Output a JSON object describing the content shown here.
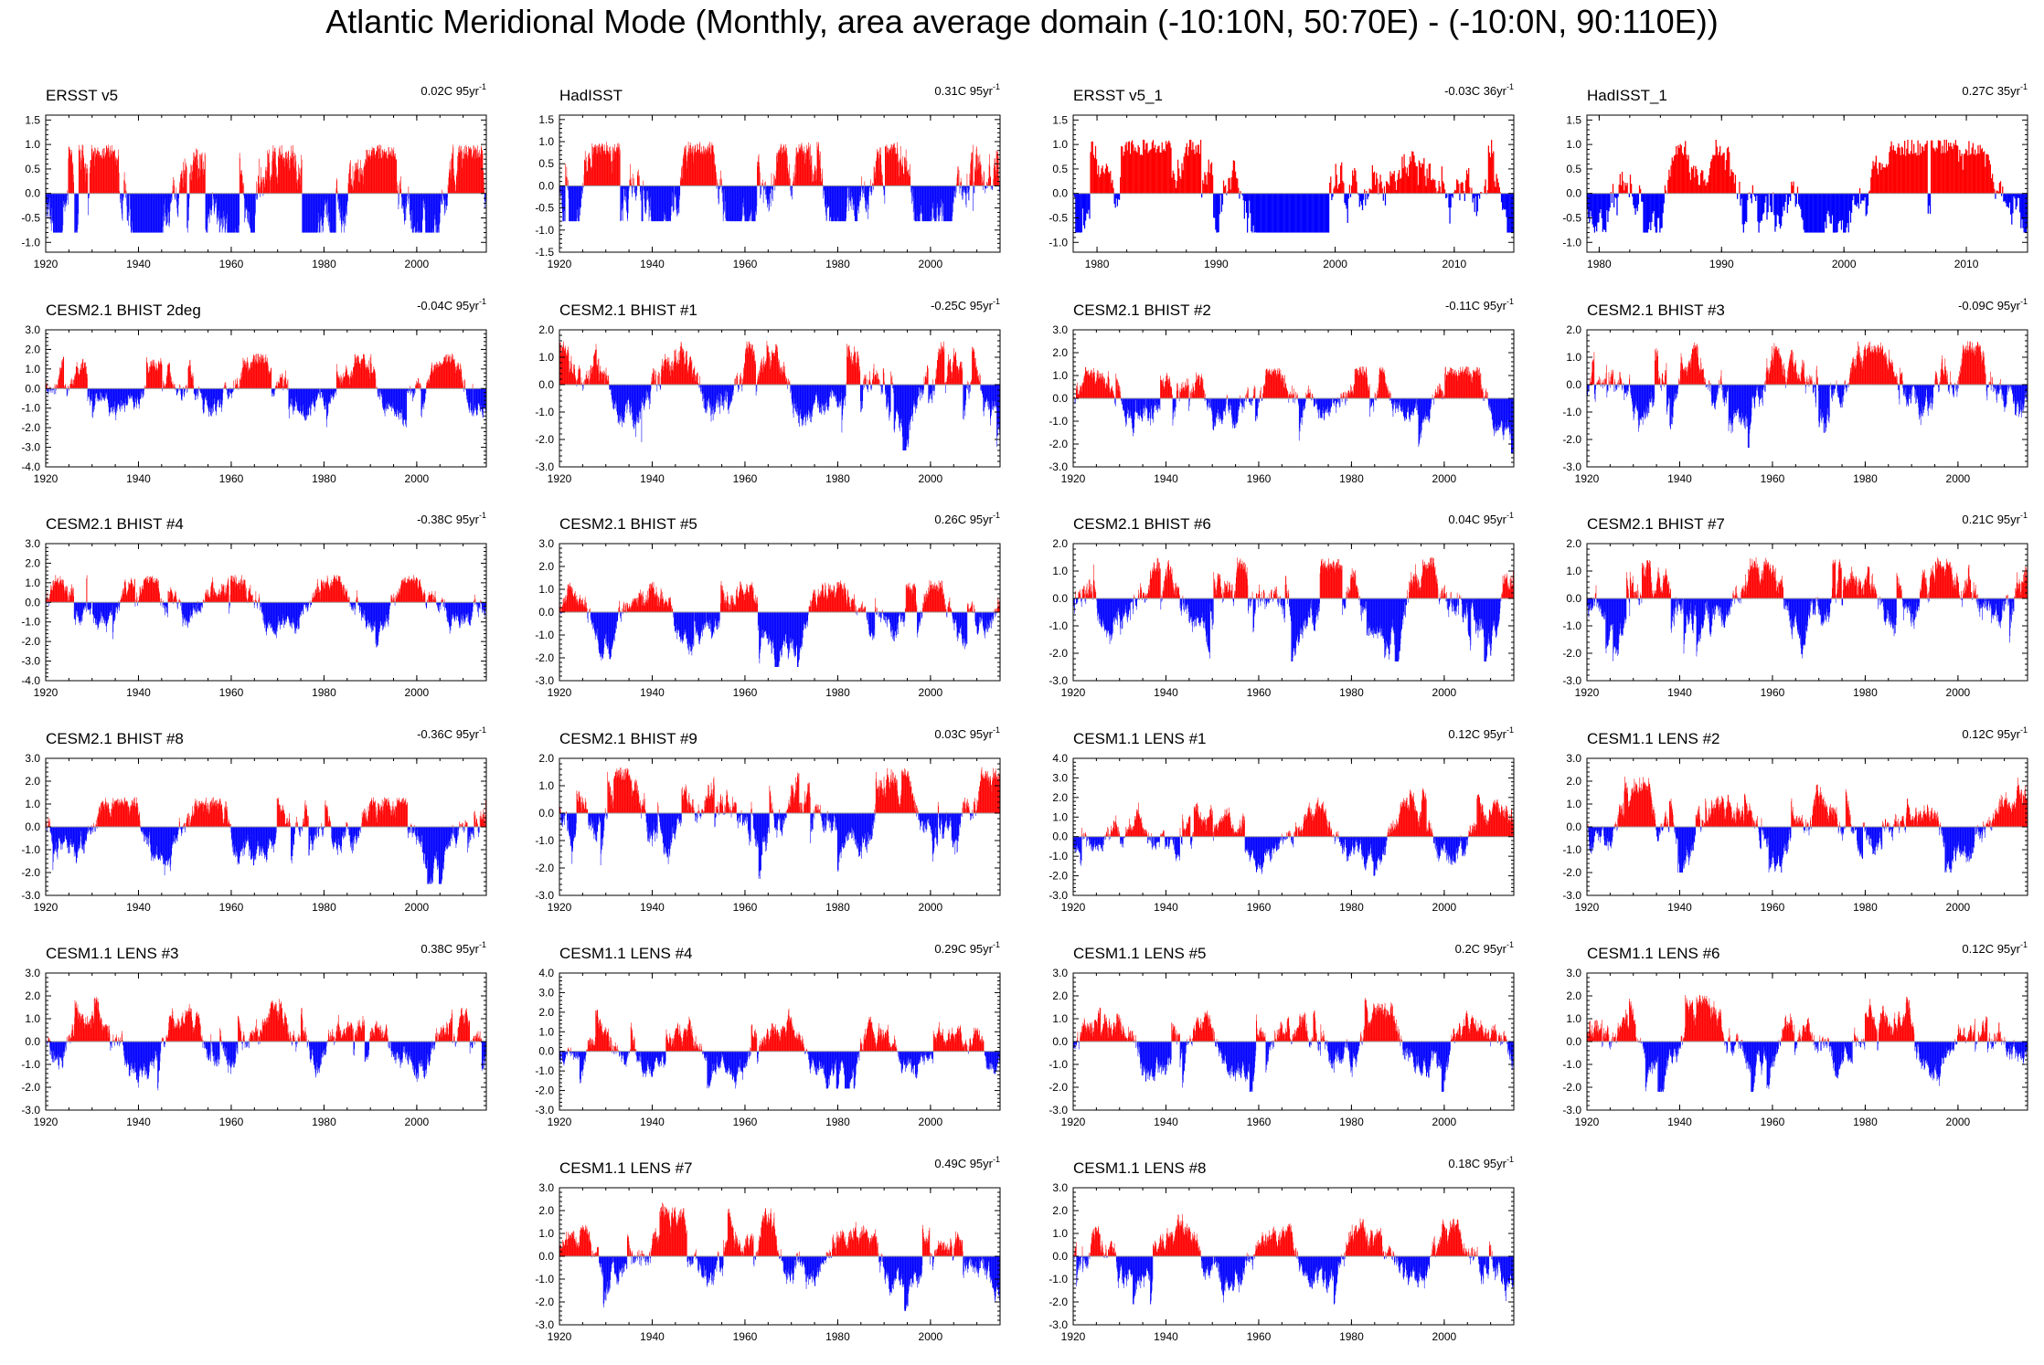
{
  "figure": {
    "title": "Atlantic Meridional Mode (Monthly, area average domain (-10:10N, 50:70E) - (-10:0N, 90:110E))"
  },
  "colors": {
    "positive": "#ff0000",
    "negative": "#0000ff",
    "line": "#999999",
    "axis": "#000000"
  },
  "chart_data": [
    {
      "type": "bar",
      "title": "ERSST v5",
      "trend": "0.02C 95yr",
      "trend_exp": "-1",
      "xlim": [
        1920,
        2015
      ],
      "ylim": [
        -1.2,
        1.6
      ],
      "yticks": [
        "1.5",
        "1.0",
        "0.5",
        "0.0",
        "-0.5",
        "-1.0"
      ],
      "ytick_values": [
        1.5,
        1.0,
        0.5,
        0.0,
        -0.5,
        -1.0
      ],
      "xticks": [
        "1920",
        "1940",
        "1960",
        "1980",
        "2000"
      ],
      "xtick_values": [
        1920,
        1940,
        1960,
        1980,
        2000
      ],
      "amp": [
        1.0,
        -0.8
      ]
    },
    {
      "type": "bar",
      "title": "HadISST",
      "trend": "0.31C 95yr",
      "trend_exp": "-1",
      "xlim": [
        1920,
        2015
      ],
      "ylim": [
        -1.5,
        1.6
      ],
      "yticks": [
        "1.5",
        "1.0",
        "0.5",
        "0.0",
        "-0.5",
        "-1.0",
        "-1.5"
      ],
      "ytick_values": [
        1.5,
        1.0,
        0.5,
        0.0,
        -0.5,
        -1.0,
        -1.5
      ],
      "xticks": [
        "1920",
        "1940",
        "1960",
        "1980",
        "2000"
      ],
      "xtick_values": [
        1920,
        1940,
        1960,
        1980,
        2000
      ],
      "amp": [
        1.0,
        -0.8
      ]
    },
    {
      "type": "bar",
      "title": "ERSST v5_1",
      "trend": "-0.03C 36yr",
      "trend_exp": "-1",
      "xlim": [
        1978,
        2015
      ],
      "ylim": [
        -1.2,
        1.6
      ],
      "yticks": [
        "1.5",
        "1.0",
        "0.5",
        "0.0",
        "-0.5",
        "-1.0"
      ],
      "ytick_values": [
        1.5,
        1.0,
        0.5,
        0.0,
        -0.5,
        -1.0
      ],
      "xticks": [
        "1980",
        "1990",
        "2000",
        "2010"
      ],
      "xtick_values": [
        1980,
        1990,
        2000,
        2010
      ],
      "amp": [
        1.1,
        -0.8
      ]
    },
    {
      "type": "bar",
      "title": "HadISST_1",
      "trend": "0.27C 35yr",
      "trend_exp": "-1",
      "xlim": [
        1979,
        2015
      ],
      "ylim": [
        -1.2,
        1.6
      ],
      "yticks": [
        "1.5",
        "1.0",
        "0.5",
        "0.0",
        "-0.5",
        "-1.0"
      ],
      "ytick_values": [
        1.5,
        1.0,
        0.5,
        0.0,
        -0.5,
        -1.0
      ],
      "xticks": [
        "1980",
        "1990",
        "2000",
        "2010"
      ],
      "xtick_values": [
        1980,
        1990,
        2000,
        2010
      ],
      "amp": [
        1.1,
        -0.8
      ]
    },
    {
      "type": "bar",
      "title": "CESM2.1 BHIST 2deg",
      "trend": "-0.04C 95yr",
      "trend_exp": "-1",
      "xlim": [
        1920,
        2015
      ],
      "ylim": [
        -4.0,
        3.0
      ],
      "yticks": [
        "3.0",
        "2.0",
        "1.0",
        "0.0",
        "-1.0",
        "-2.0",
        "-3.0",
        "-4.0"
      ],
      "ytick_values": [
        3,
        2,
        1,
        0,
        -1,
        -2,
        -3,
        -4
      ],
      "xticks": [
        "1920",
        "1940",
        "1960",
        "1980",
        "2000"
      ],
      "xtick_values": [
        1920,
        1940,
        1960,
        1980,
        2000
      ],
      "amp": [
        1.8,
        -2.6
      ]
    },
    {
      "type": "bar",
      "title": "CESM2.1 BHIST #1",
      "trend": "-0.25C 95yr",
      "trend_exp": "-1",
      "xlim": [
        1920,
        2015
      ],
      "ylim": [
        -3.0,
        2.0
      ],
      "yticks": [
        "2.0",
        "1.0",
        "0.0",
        "-1.0",
        "-2.0",
        "-3.0"
      ],
      "ytick_values": [
        2,
        1,
        0,
        -1,
        -2,
        -3
      ],
      "xticks": [
        "1920",
        "1940",
        "1960",
        "1980",
        "2000"
      ],
      "xtick_values": [
        1920,
        1940,
        1960,
        1980,
        2000
      ],
      "amp": [
        1.6,
        -2.4
      ]
    },
    {
      "type": "bar",
      "title": "CESM2.1 BHIST #2",
      "trend": "-0.11C 95yr",
      "trend_exp": "-1",
      "xlim": [
        1920,
        2015
      ],
      "ylim": [
        -3.0,
        3.0
      ],
      "yticks": [
        "3.0",
        "2.0",
        "1.0",
        "0.0",
        "-1.0",
        "-2.0",
        "-3.0"
      ],
      "ytick_values": [
        3,
        2,
        1,
        0,
        -1,
        -2,
        -3
      ],
      "xticks": [
        "1920",
        "1940",
        "1960",
        "1980",
        "2000"
      ],
      "xtick_values": [
        1920,
        1940,
        1960,
        1980,
        2000
      ],
      "amp": [
        1.4,
        -2.4
      ]
    },
    {
      "type": "bar",
      "title": "CESM2.1 BHIST #3",
      "trend": "-0.09C 95yr",
      "trend_exp": "-1",
      "xlim": [
        1920,
        2015
      ],
      "ylim": [
        -3.0,
        2.0
      ],
      "yticks": [
        "2.0",
        "1.0",
        "0.0",
        "-1.0",
        "-2.0",
        "-3.0"
      ],
      "ytick_values": [
        2,
        1,
        0,
        -1,
        -2,
        -3
      ],
      "xticks": [
        "1920",
        "1940",
        "1960",
        "1980",
        "2000"
      ],
      "xtick_values": [
        1920,
        1940,
        1960,
        1980,
        2000
      ],
      "amp": [
        1.6,
        -2.3
      ]
    },
    {
      "type": "bar",
      "title": "CESM2.1 BHIST #4",
      "trend": "-0.38C 95yr",
      "trend_exp": "-1",
      "xlim": [
        1920,
        2015
      ],
      "ylim": [
        -4.0,
        3.0
      ],
      "yticks": [
        "3.0",
        "2.0",
        "1.0",
        "0.0",
        "-1.0",
        "-2.0",
        "-3.0",
        "-4.0"
      ],
      "ytick_values": [
        3,
        2,
        1,
        0,
        -1,
        -2,
        -3,
        -4
      ],
      "xticks": [
        "1920",
        "1940",
        "1960",
        "1980",
        "2000"
      ],
      "xtick_values": [
        1920,
        1940,
        1960,
        1980,
        2000
      ],
      "amp": [
        1.4,
        -2.8
      ]
    },
    {
      "type": "bar",
      "title": "CESM2.1 BHIST #5",
      "trend": "0.26C 95yr",
      "trend_exp": "-1",
      "xlim": [
        1920,
        2015
      ],
      "ylim": [
        -3.0,
        3.0
      ],
      "yticks": [
        "3.0",
        "2.0",
        "1.0",
        "0.0",
        "-1.0",
        "-2.0",
        "-3.0"
      ],
      "ytick_values": [
        3,
        2,
        1,
        0,
        -1,
        -2,
        -3
      ],
      "xticks": [
        "1920",
        "1940",
        "1960",
        "1980",
        "2000"
      ],
      "xtick_values": [
        1920,
        1940,
        1960,
        1980,
        2000
      ],
      "amp": [
        1.4,
        -2.4
      ]
    },
    {
      "type": "bar",
      "title": "CESM2.1 BHIST #6",
      "trend": "0.04C 95yr",
      "trend_exp": "-1",
      "xlim": [
        1920,
        2015
      ],
      "ylim": [
        -3.0,
        2.0
      ],
      "yticks": [
        "2.0",
        "1.0",
        "0.0",
        "-1.0",
        "-2.0",
        "-3.0"
      ],
      "ytick_values": [
        2,
        1,
        0,
        -1,
        -2,
        -3
      ],
      "xticks": [
        "1920",
        "1940",
        "1960",
        "1980",
        "2000"
      ],
      "xtick_values": [
        1920,
        1940,
        1960,
        1980,
        2000
      ],
      "amp": [
        1.5,
        -2.3
      ]
    },
    {
      "type": "bar",
      "title": "CESM2.1 BHIST #7",
      "trend": "0.21C 95yr",
      "trend_exp": "-1",
      "xlim": [
        1920,
        2015
      ],
      "ylim": [
        -3.0,
        2.0
      ],
      "yticks": [
        "2.0",
        "1.0",
        "0.0",
        "-1.0",
        "-2.0",
        "-3.0"
      ],
      "ytick_values": [
        2,
        1,
        0,
        -1,
        -2,
        -3
      ],
      "xticks": [
        "1920",
        "1940",
        "1960",
        "1980",
        "2000"
      ],
      "xtick_values": [
        1920,
        1940,
        1960,
        1980,
        2000
      ],
      "amp": [
        1.5,
        -2.3
      ]
    },
    {
      "type": "bar",
      "title": "CESM2.1 BHIST #8",
      "trend": "-0.36C 95yr",
      "trend_exp": "-1",
      "xlim": [
        1920,
        2015
      ],
      "ylim": [
        -3.0,
        3.0
      ],
      "yticks": [
        "3.0",
        "2.0",
        "1.0",
        "0.0",
        "-1.0",
        "-2.0",
        "-3.0"
      ],
      "ytick_values": [
        3,
        2,
        1,
        0,
        -1,
        -2,
        -3
      ],
      "xticks": [
        "1920",
        "1940",
        "1960",
        "1980",
        "2000"
      ],
      "xtick_values": [
        1920,
        1940,
        1960,
        1980,
        2000
      ],
      "amp": [
        1.3,
        -2.5
      ]
    },
    {
      "type": "bar",
      "title": "CESM2.1 BHIST #9",
      "trend": "0.03C 95yr",
      "trend_exp": "-1",
      "xlim": [
        1920,
        2015
      ],
      "ylim": [
        -3.0,
        2.0
      ],
      "yticks": [
        "2.0",
        "1.0",
        "0.0",
        "-1.0",
        "-2.0",
        "-3.0"
      ],
      "ytick_values": [
        2,
        1,
        0,
        -1,
        -2,
        -3
      ],
      "xticks": [
        "1920",
        "1940",
        "1960",
        "1980",
        "2000"
      ],
      "xtick_values": [
        1920,
        1940,
        1960,
        1980,
        2000
      ],
      "amp": [
        1.7,
        -2.4
      ]
    },
    {
      "type": "bar",
      "title": "CESM1.1 LENS #1",
      "trend": "0.12C 95yr",
      "trend_exp": "-1",
      "xlim": [
        1920,
        2015
      ],
      "ylim": [
        -3.0,
        4.0
      ],
      "yticks": [
        "4.0",
        "3.0",
        "2.0",
        "1.0",
        "0.0",
        "-1.0",
        "-2.0",
        "-3.0"
      ],
      "ytick_values": [
        4,
        3,
        2,
        1,
        0,
        -1,
        -2,
        -3
      ],
      "xticks": [
        "1920",
        "1940",
        "1960",
        "1980",
        "2000"
      ],
      "xtick_values": [
        1920,
        1940,
        1960,
        1980,
        2000
      ],
      "amp": [
        2.5,
        -2.0
      ]
    },
    {
      "type": "bar",
      "title": "CESM1.1 LENS #2",
      "trend": "0.12C 95yr",
      "trend_exp": "-1",
      "xlim": [
        1920,
        2015
      ],
      "ylim": [
        -3.0,
        3.0
      ],
      "yticks": [
        "3.0",
        "2.0",
        "1.0",
        "0.0",
        "-1.0",
        "-2.0",
        "-3.0"
      ],
      "ytick_values": [
        3,
        2,
        1,
        0,
        -1,
        -2,
        -3
      ],
      "xticks": [
        "1920",
        "1940",
        "1960",
        "1980",
        "2000"
      ],
      "xtick_values": [
        1920,
        1940,
        1960,
        1980,
        2000
      ],
      "amp": [
        2.2,
        -2.0
      ]
    },
    {
      "type": "bar",
      "title": "CESM1.1 LENS #3",
      "trend": "0.38C 95yr",
      "trend_exp": "-1",
      "xlim": [
        1920,
        2015
      ],
      "ylim": [
        -3.0,
        3.0
      ],
      "yticks": [
        "3.0",
        "2.0",
        "1.0",
        "0.0",
        "-1.0",
        "-2.0",
        "-3.0"
      ],
      "ytick_values": [
        3,
        2,
        1,
        0,
        -1,
        -2,
        -3
      ],
      "xticks": [
        "1920",
        "1940",
        "1960",
        "1980",
        "2000"
      ],
      "xtick_values": [
        1920,
        1940,
        1960,
        1980,
        2000
      ],
      "amp": [
        2.0,
        -2.2
      ]
    },
    {
      "type": "bar",
      "title": "CESM1.1 LENS #4",
      "trend": "0.29C 95yr",
      "trend_exp": "-1",
      "xlim": [
        1920,
        2015
      ],
      "ylim": [
        -3.0,
        4.0
      ],
      "yticks": [
        "4.0",
        "3.0",
        "2.0",
        "1.0",
        "0.0",
        "-1.0",
        "-2.0",
        "-3.0"
      ],
      "ytick_values": [
        4,
        3,
        2,
        1,
        0,
        -1,
        -2,
        -3
      ],
      "xticks": [
        "1920",
        "1940",
        "1960",
        "1980",
        "2000"
      ],
      "xtick_values": [
        1920,
        1940,
        1960,
        1980,
        2000
      ],
      "amp": [
        2.6,
        -1.9
      ]
    },
    {
      "type": "bar",
      "title": "CESM1.1 LENS #5",
      "trend": "0.2C 95yr",
      "trend_exp": "-1",
      "xlim": [
        1920,
        2015
      ],
      "ylim": [
        -3.0,
        3.0
      ],
      "yticks": [
        "3.0",
        "2.0",
        "1.0",
        "0.0",
        "-1.0",
        "-2.0",
        "-3.0"
      ],
      "ytick_values": [
        3,
        2,
        1,
        0,
        -1,
        -2,
        -3
      ],
      "xticks": [
        "1920",
        "1940",
        "1960",
        "1980",
        "2000"
      ],
      "xtick_values": [
        1920,
        1940,
        1960,
        1980,
        2000
      ],
      "amp": [
        2.3,
        -2.2
      ]
    },
    {
      "type": "bar",
      "title": "CESM1.1 LENS #6",
      "trend": "0.12C 95yr",
      "trend_exp": "-1",
      "xlim": [
        1920,
        2015
      ],
      "ylim": [
        -3.0,
        3.0
      ],
      "yticks": [
        "3.0",
        "2.0",
        "1.0",
        "0.0",
        "-1.0",
        "-2.0",
        "-3.0"
      ],
      "ytick_values": [
        3,
        2,
        1,
        0,
        -1,
        -2,
        -3
      ],
      "xticks": [
        "1920",
        "1940",
        "1960",
        "1980",
        "2000"
      ],
      "xtick_values": [
        1920,
        1940,
        1960,
        1980,
        2000
      ],
      "amp": [
        2.3,
        -2.2
      ]
    },
    {
      "type": "bar",
      "title": "CESM1.1 LENS #7",
      "trend": "0.49C 95yr",
      "trend_exp": "-1",
      "xlim": [
        1920,
        2015
      ],
      "ylim": [
        -3.0,
        3.0
      ],
      "yticks": [
        "3.0",
        "2.0",
        "1.0",
        "0.0",
        "-1.0",
        "-2.0",
        "-3.0"
      ],
      "ytick_values": [
        3,
        2,
        1,
        0,
        -1,
        -2,
        -3
      ],
      "xticks": [
        "1920",
        "1940",
        "1960",
        "1980",
        "2000"
      ],
      "xtick_values": [
        1920,
        1940,
        1960,
        1980,
        2000
      ],
      "amp": [
        2.4,
        -2.4
      ]
    },
    {
      "type": "bar",
      "title": "CESM1.1 LENS #8",
      "trend": "0.18C 95yr",
      "trend_exp": "-1",
      "xlim": [
        1920,
        2015
      ],
      "ylim": [
        -3.0,
        3.0
      ],
      "yticks": [
        "3.0",
        "2.0",
        "1.0",
        "0.0",
        "-1.0",
        "-2.0",
        "-3.0"
      ],
      "ytick_values": [
        3,
        2,
        1,
        0,
        -1,
        -2,
        -3
      ],
      "xticks": [
        "1920",
        "1940",
        "1960",
        "1980",
        "2000"
      ],
      "xtick_values": [
        1920,
        1940,
        1960,
        1980,
        2000
      ],
      "amp": [
        2.3,
        -2.1
      ]
    }
  ]
}
